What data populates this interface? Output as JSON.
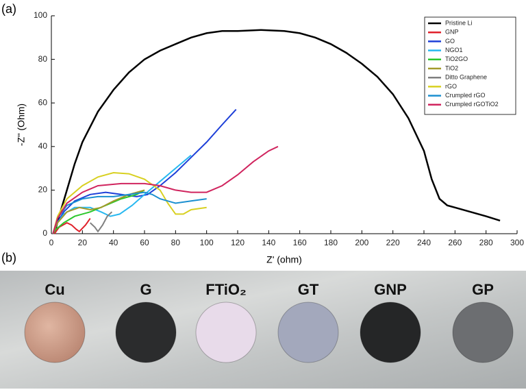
{
  "chart_data": {
    "type": "line",
    "xlabel": "Z' (ohm)",
    "ylabel": "-Z'' (Ohm)",
    "xlim": [
      0,
      300
    ],
    "ylim": [
      0,
      100
    ],
    "xticks": [
      0,
      20,
      40,
      60,
      80,
      100,
      120,
      140,
      160,
      180,
      200,
      220,
      240,
      260,
      280,
      300
    ],
    "yticks": [
      0,
      20,
      40,
      60,
      80,
      100
    ],
    "legend": "upper right",
    "series": [
      {
        "name": "Pristine Li",
        "color": "#000000",
        "x": [
          2,
          5,
          10,
          15,
          20,
          30,
          40,
          50,
          60,
          70,
          80,
          90,
          100,
          110,
          120,
          135,
          150,
          160,
          170,
          180,
          190,
          200,
          210,
          220,
          230,
          240,
          245,
          250,
          255,
          260,
          270,
          280,
          289
        ],
        "values": [
          0,
          8,
          20,
          32,
          42,
          56,
          66,
          74,
          80,
          84,
          87,
          90,
          92,
          93,
          93,
          93.5,
          93,
          92,
          90,
          87,
          83,
          78,
          72,
          64,
          53,
          38,
          25,
          16,
          13,
          12,
          10,
          8,
          6
        ]
      },
      {
        "name": "GNP",
        "color": "#e0202a",
        "x": [
          2,
          5,
          10,
          13,
          16,
          18,
          22,
          25
        ],
        "values": [
          0,
          3,
          5,
          4,
          2,
          1,
          4,
          7
        ]
      },
      {
        "name": "GO",
        "color": "#1d3fd8",
        "x": [
          1,
          3,
          8,
          15,
          25,
          35,
          45,
          55,
          62,
          70,
          80,
          90,
          100,
          110,
          119
        ],
        "values": [
          0,
          4,
          10,
          15,
          18,
          19,
          18,
          17,
          18,
          22,
          28,
          35,
          42,
          50,
          57
        ]
      },
      {
        "name": "NGO1",
        "color": "#27b8f0",
        "x": [
          1,
          3,
          8,
          15,
          25,
          32,
          38,
          44,
          52,
          60,
          70,
          80,
          90
        ],
        "values": [
          0,
          4,
          9,
          12,
          12,
          10,
          8,
          9,
          13,
          18,
          24,
          30,
          36
        ]
      },
      {
        "name": "TiO2GO",
        "color": "#2cc72c",
        "x": [
          1,
          3,
          8,
          15,
          25,
          35,
          45,
          55,
          60
        ],
        "values": [
          0,
          2,
          5,
          8,
          10,
          13,
          16,
          18,
          20
        ]
      },
      {
        "name": "TiO2",
        "color": "#a39a2a",
        "x": [
          1,
          4,
          10,
          18,
          25,
          32,
          40,
          50,
          60
        ],
        "values": [
          0,
          5,
          10,
          12,
          11,
          12,
          15,
          18,
          20
        ]
      },
      {
        "name": "Ditto Graphene",
        "color": "#808080",
        "x": [
          25,
          28,
          30,
          33,
          36,
          39
        ],
        "values": [
          5,
          3,
          1,
          4,
          8,
          10
        ]
      },
      {
        "name": "rGO",
        "color": "#d8d020",
        "x": [
          1,
          4,
          10,
          20,
          30,
          40,
          50,
          60,
          70,
          75,
          80,
          85,
          90,
          100
        ],
        "values": [
          0,
          8,
          16,
          22,
          26,
          28,
          27.5,
          25,
          20,
          14,
          9,
          9,
          11,
          12
        ]
      },
      {
        "name": "Crumpled rGO",
        "color": "#1b8fd0",
        "x": [
          1,
          4,
          10,
          20,
          30,
          40,
          50,
          60,
          65,
          70,
          80,
          90,
          100
        ],
        "values": [
          0,
          7,
          13,
          16,
          17,
          17,
          18,
          19,
          18,
          16,
          14,
          15,
          16
        ]
      },
      {
        "name": "Crumpled rGOTiO2",
        "color": "#d0245e",
        "x": [
          1,
          4,
          10,
          20,
          30,
          45,
          60,
          70,
          80,
          90,
          100,
          110,
          120,
          130,
          140,
          146
        ],
        "values": [
          0,
          7,
          14,
          19,
          22,
          23,
          23,
          22,
          20,
          19,
          19,
          22,
          27,
          33,
          38,
          40
        ]
      }
    ]
  },
  "panel_labels": [
    "(a)",
    "(b)"
  ],
  "photo": {
    "samples": [
      "Cu",
      "G",
      "FTiO₂",
      "GT",
      "GNP",
      "GP"
    ]
  }
}
